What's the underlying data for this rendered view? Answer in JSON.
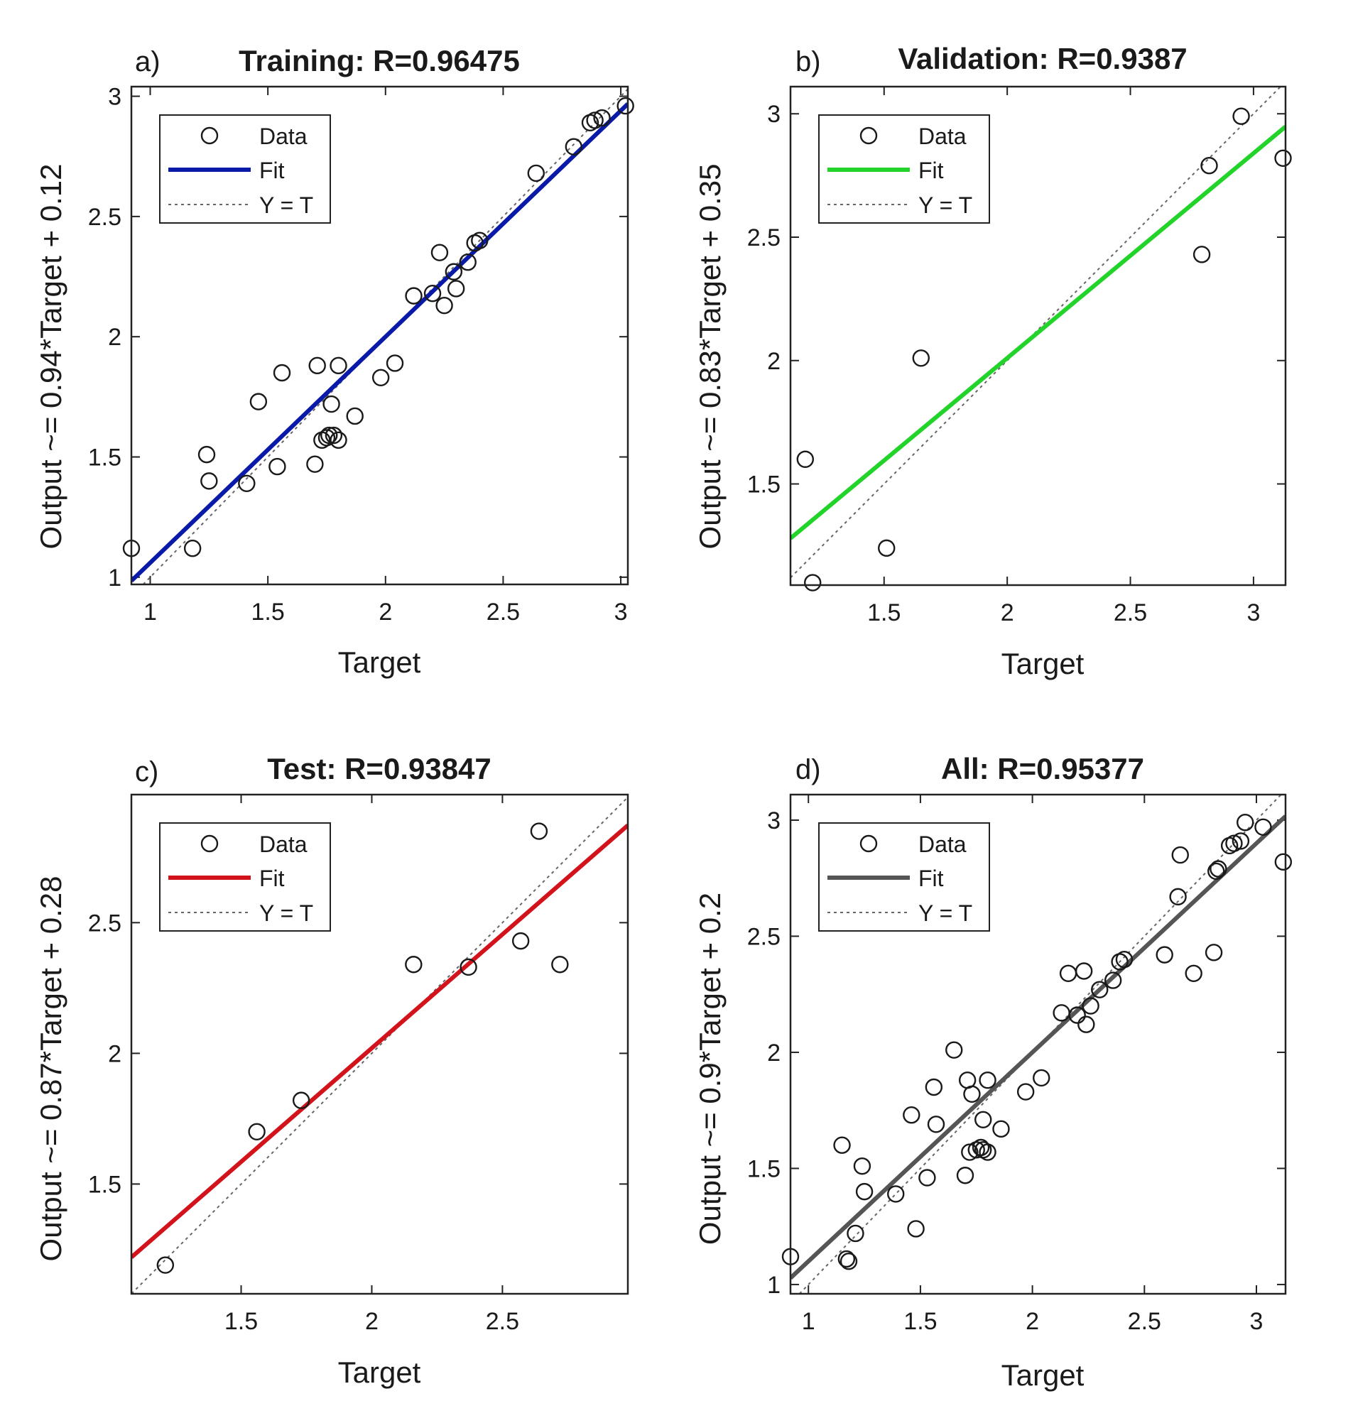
{
  "figure": {
    "background": "#ffffff",
    "axis_color": "#222222",
    "data_marker_color": "#1a1a1a",
    "identity_line_color": "#666666"
  },
  "chart_data": [
    {
      "type": "scatter",
      "panel_letter": "a)",
      "title": "Training: R=0.96475",
      "xlabel": "Target",
      "ylabel": "Output ~= 0.94*Target + 0.12",
      "xlim": [
        0.92,
        3.03
      ],
      "ylim": [
        0.97,
        3.04
      ],
      "xticks": [
        1,
        1.5,
        2,
        2.5,
        3
      ],
      "yticks": [
        1,
        1.5,
        2,
        2.5,
        3
      ],
      "xtick_labels": [
        "1",
        "1.5",
        "2",
        "2.5",
        "3"
      ],
      "ytick_labels": [
        "1",
        "1.5",
        "2",
        "2.5",
        "3"
      ],
      "fit": {
        "slope": 0.94,
        "intercept": 0.12,
        "color": "#0a1aa8"
      },
      "legend": {
        "position": "top-left",
        "entries": [
          "Data",
          "Fit",
          "Y = T"
        ]
      },
      "points": {
        "x": [
          0.92,
          1.18,
          1.24,
          1.25,
          1.41,
          1.46,
          1.54,
          1.56,
          1.7,
          1.71,
          1.73,
          1.75,
          1.76,
          1.77,
          1.78,
          1.8,
          1.8,
          1.87,
          1.98,
          2.04,
          2.12,
          2.2,
          2.23,
          2.25,
          2.29,
          2.3,
          2.35,
          2.38,
          2.4,
          2.64,
          2.8,
          2.87,
          2.89,
          2.92,
          3.02
        ],
        "y": [
          1.12,
          1.12,
          1.51,
          1.4,
          1.39,
          1.73,
          1.46,
          1.85,
          1.47,
          1.88,
          1.57,
          1.58,
          1.59,
          1.72,
          1.59,
          1.88,
          1.57,
          1.67,
          1.83,
          1.89,
          2.17,
          2.18,
          2.35,
          2.13,
          2.27,
          2.2,
          2.31,
          2.39,
          2.4,
          2.68,
          2.79,
          2.89,
          2.9,
          2.91,
          2.96
        ]
      }
    },
    {
      "type": "scatter",
      "panel_letter": "b)",
      "title": "Validation: R=0.9387",
      "xlabel": "Target",
      "ylabel": "Output ~= 0.83*Target + 0.35",
      "xlim": [
        1.12,
        3.13
      ],
      "ylim": [
        1.09,
        3.11
      ],
      "xticks": [
        1.5,
        2,
        2.5,
        3
      ],
      "yticks": [
        1.5,
        2,
        2.5,
        3
      ],
      "xtick_labels": [
        "1.5",
        "2",
        "2.5",
        "3"
      ],
      "ytick_labels": [
        "1.5",
        "2",
        "2.5",
        "3"
      ],
      "fit": {
        "slope": 0.83,
        "intercept": 0.35,
        "color": "#22d32a"
      },
      "legend": {
        "position": "top-left",
        "entries": [
          "Data",
          "Fit",
          "Y = T"
        ]
      },
      "points": {
        "x": [
          1.18,
          1.21,
          1.51,
          1.65,
          2.79,
          2.82,
          2.95,
          3.12
        ],
        "y": [
          1.6,
          1.1,
          1.24,
          2.01,
          2.43,
          2.79,
          2.99,
          2.82
        ]
      }
    },
    {
      "type": "scatter",
      "panel_letter": "c)",
      "title": "Test: R=0.93847",
      "xlabel": "Target",
      "ylabel": "Output ~= 0.87*Target + 0.28",
      "xlim": [
        1.08,
        2.98
      ],
      "ylim": [
        1.08,
        2.99
      ],
      "xticks": [
        1.5,
        2,
        2.5
      ],
      "yticks": [
        1.5,
        2,
        2.5
      ],
      "xtick_labels": [
        "1.5",
        "2",
        "2.5"
      ],
      "ytick_labels": [
        "1.5",
        "2",
        "2.5"
      ],
      "fit": {
        "slope": 0.87,
        "intercept": 0.28,
        "color": "#d3131b"
      },
      "legend": {
        "position": "top-left",
        "entries": [
          "Data",
          "Fit",
          "Y = T"
        ]
      },
      "points": {
        "x": [
          1.21,
          1.56,
          1.73,
          2.16,
          2.37,
          2.57,
          2.64,
          2.72
        ],
        "y": [
          1.19,
          1.7,
          1.82,
          2.34,
          2.33,
          2.43,
          2.85,
          2.34
        ]
      }
    },
    {
      "type": "scatter",
      "panel_letter": "d)",
      "title": "All: R=0.95377",
      "xlabel": "Target",
      "ylabel": "Output ~= 0.9*Target + 0.2",
      "xlim": [
        0.92,
        3.13
      ],
      "ylim": [
        0.96,
        3.11
      ],
      "xticks": [
        1,
        1.5,
        2,
        2.5,
        3
      ],
      "yticks": [
        1,
        1.5,
        2,
        2.5,
        3
      ],
      "xtick_labels": [
        "1",
        "1.5",
        "2",
        "2.5",
        "3"
      ],
      "ytick_labels": [
        "1",
        "1.5",
        "2",
        "2.5",
        "3"
      ],
      "fit": {
        "slope": 0.9,
        "intercept": 0.2,
        "color": "#555555"
      },
      "legend": {
        "position": "top-left",
        "entries": [
          "Data",
          "Fit",
          "Y = T"
        ]
      },
      "points": {
        "x": [
          0.92,
          1.15,
          1.17,
          1.18,
          1.21,
          1.24,
          1.25,
          1.39,
          1.46,
          1.48,
          1.53,
          1.56,
          1.57,
          1.65,
          1.7,
          1.71,
          1.72,
          1.73,
          1.75,
          1.77,
          1.78,
          1.78,
          1.8,
          1.8,
          1.86,
          1.97,
          2.04,
          2.13,
          2.16,
          2.2,
          2.23,
          2.24,
          2.26,
          2.3,
          2.36,
          2.39,
          2.41,
          2.59,
          2.65,
          2.66,
          2.72,
          2.81,
          2.82,
          2.83,
          2.88,
          2.9,
          2.93,
          2.95,
          3.03,
          3.12
        ],
        "y": [
          1.12,
          1.6,
          1.11,
          1.1,
          1.22,
          1.51,
          1.4,
          1.39,
          1.73,
          1.24,
          1.46,
          1.85,
          1.69,
          2.01,
          1.47,
          1.88,
          1.57,
          1.82,
          1.58,
          1.59,
          1.71,
          1.58,
          1.88,
          1.57,
          1.67,
          1.83,
          1.89,
          2.17,
          2.34,
          2.16,
          2.35,
          2.12,
          2.2,
          2.27,
          2.31,
          2.39,
          2.4,
          2.42,
          2.67,
          2.85,
          2.34,
          2.43,
          2.78,
          2.79,
          2.89,
          2.9,
          2.91,
          2.99,
          2.97,
          2.82
        ]
      }
    }
  ]
}
